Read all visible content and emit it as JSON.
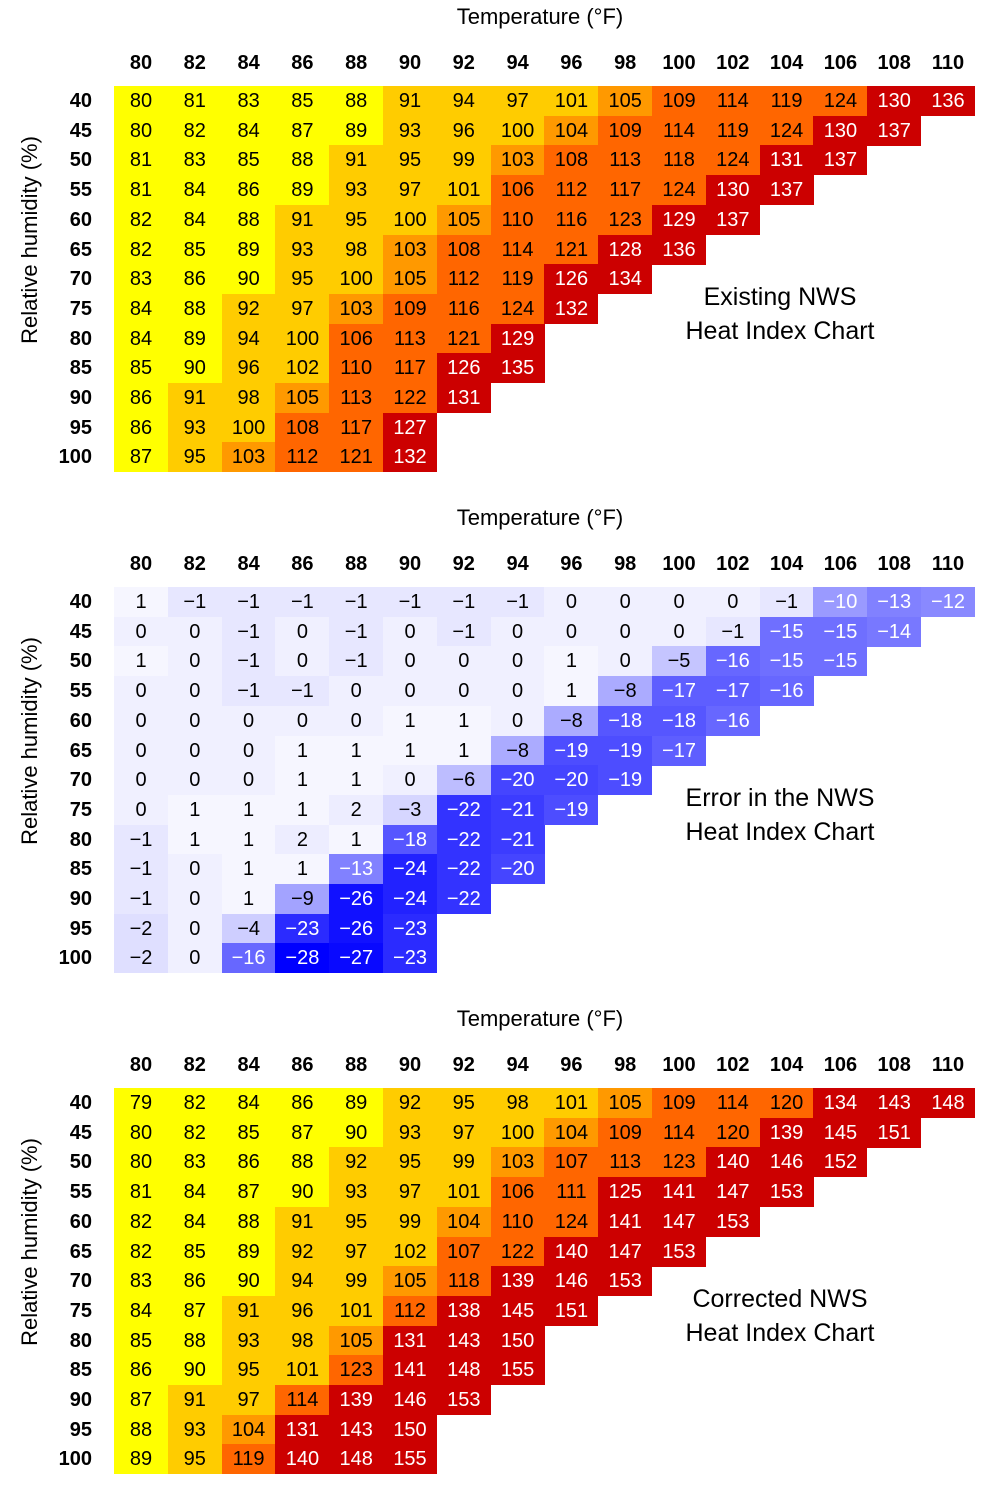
{
  "chart_data": [
    {
      "type": "heatmap",
      "title_lines": [
        "Existing NWS",
        "Heat Index Chart"
      ],
      "xlabel": "Temperature (°F)",
      "ylabel": "Relative humidity (%)",
      "x": [
        80,
        82,
        84,
        86,
        88,
        90,
        92,
        94,
        96,
        98,
        100,
        102,
        104,
        106,
        108,
        110
      ],
      "y": [
        40,
        45,
        50,
        55,
        60,
        65,
        70,
        75,
        80,
        85,
        90,
        95,
        100
      ],
      "colorscale": "heat",
      "values": [
        [
          80,
          81,
          83,
          85,
          88,
          91,
          94,
          97,
          101,
          105,
          109,
          114,
          119,
          124,
          130,
          136
        ],
        [
          80,
          82,
          84,
          87,
          89,
          93,
          96,
          100,
          104,
          109,
          114,
          119,
          124,
          130,
          137
        ],
        [
          81,
          83,
          85,
          88,
          91,
          95,
          99,
          103,
          108,
          113,
          118,
          124,
          131,
          137
        ],
        [
          81,
          84,
          86,
          89,
          93,
          97,
          101,
          106,
          112,
          117,
          124,
          130,
          137
        ],
        [
          82,
          84,
          88,
          91,
          95,
          100,
          105,
          110,
          116,
          123,
          129,
          137
        ],
        [
          82,
          85,
          89,
          93,
          98,
          103,
          108,
          114,
          121,
          128,
          136
        ],
        [
          83,
          86,
          90,
          95,
          100,
          105,
          112,
          119,
          126,
          134
        ],
        [
          84,
          88,
          92,
          97,
          103,
          109,
          116,
          124,
          132
        ],
        [
          84,
          89,
          94,
          100,
          106,
          113,
          121,
          129
        ],
        [
          85,
          90,
          96,
          102,
          110,
          117,
          126,
          135
        ],
        [
          86,
          91,
          98,
          105,
          113,
          122,
          131
        ],
        [
          86,
          93,
          100,
          108,
          117,
          127
        ],
        [
          87,
          95,
          103,
          112,
          121,
          132
        ]
      ]
    },
    {
      "type": "heatmap",
      "title_lines": [
        "Error in the NWS",
        "Heat Index Chart"
      ],
      "xlabel": "Temperature (°F)",
      "ylabel": "Relative humidity (%)",
      "x": [
        80,
        82,
        84,
        86,
        88,
        90,
        92,
        94,
        96,
        98,
        100,
        102,
        104,
        106,
        108,
        110
      ],
      "y": [
        40,
        45,
        50,
        55,
        60,
        65,
        70,
        75,
        80,
        85,
        90,
        95,
        100
      ],
      "colorscale": "blue",
      "values": [
        [
          1,
          -1,
          -1,
          -1,
          -1,
          -1,
          -1,
          -1,
          0,
          0,
          0,
          0,
          -1,
          -10,
          -13,
          -12
        ],
        [
          0,
          0,
          -1,
          0,
          -1,
          0,
          -1,
          0,
          0,
          0,
          0,
          -1,
          -15,
          -15,
          -14
        ],
        [
          1,
          0,
          -1,
          0,
          -1,
          0,
          0,
          0,
          1,
          0,
          -5,
          -16,
          -15,
          -15
        ],
        [
          0,
          0,
          -1,
          -1,
          0,
          0,
          0,
          0,
          1,
          -8,
          -17,
          -17,
          -16
        ],
        [
          0,
          0,
          0,
          0,
          0,
          1,
          1,
          0,
          -8,
          -18,
          -18,
          -16
        ],
        [
          0,
          0,
          0,
          1,
          1,
          1,
          1,
          -8,
          -19,
          -19,
          -17
        ],
        [
          0,
          0,
          0,
          1,
          1,
          0,
          -6,
          -20,
          -20,
          -19
        ],
        [
          0,
          1,
          1,
          1,
          2,
          -3,
          -22,
          -21,
          -19
        ],
        [
          -1,
          1,
          1,
          2,
          1,
          -18,
          -22,
          -21
        ],
        [
          -1,
          0,
          1,
          1,
          -13,
          -24,
          -22,
          -20
        ],
        [
          -1,
          0,
          1,
          -9,
          -26,
          -24,
          -22
        ],
        [
          -2,
          0,
          -4,
          -23,
          -26,
          -23
        ],
        [
          -2,
          0,
          -16,
          -28,
          -27,
          -23
        ]
      ]
    },
    {
      "type": "heatmap",
      "title_lines": [
        "Corrected NWS",
        "Heat Index Chart"
      ],
      "xlabel": "Temperature (°F)",
      "ylabel": "Relative humidity (%)",
      "x": [
        80,
        82,
        84,
        86,
        88,
        90,
        92,
        94,
        96,
        98,
        100,
        102,
        104,
        106,
        108,
        110
      ],
      "y": [
        40,
        45,
        50,
        55,
        60,
        65,
        70,
        75,
        80,
        85,
        90,
        95,
        100
      ],
      "colorscale": "heat",
      "values": [
        [
          79,
          82,
          84,
          86,
          89,
          92,
          95,
          98,
          101,
          105,
          109,
          114,
          120,
          134,
          143,
          148
        ],
        [
          80,
          82,
          85,
          87,
          90,
          93,
          97,
          100,
          104,
          109,
          114,
          120,
          139,
          145,
          151
        ],
        [
          80,
          83,
          86,
          88,
          92,
          95,
          99,
          103,
          107,
          113,
          123,
          140,
          146,
          152
        ],
        [
          81,
          84,
          87,
          90,
          93,
          97,
          101,
          106,
          111,
          125,
          141,
          147,
          153
        ],
        [
          82,
          84,
          88,
          91,
          95,
          99,
          104,
          110,
          124,
          141,
          147,
          153
        ],
        [
          82,
          85,
          89,
          92,
          97,
          102,
          107,
          122,
          140,
          147,
          153
        ],
        [
          83,
          86,
          90,
          94,
          99,
          105,
          118,
          139,
          146,
          153
        ],
        [
          84,
          87,
          91,
          96,
          101,
          112,
          138,
          145,
          151
        ],
        [
          85,
          88,
          93,
          98,
          105,
          131,
          143,
          150
        ],
        [
          86,
          90,
          95,
          101,
          123,
          141,
          148,
          155
        ],
        [
          87,
          91,
          97,
          114,
          139,
          146,
          153
        ],
        [
          88,
          93,
          104,
          131,
          143,
          150
        ],
        [
          89,
          95,
          119,
          140,
          148,
          155
        ]
      ]
    }
  ],
  "colors": {
    "yellow": "#ffff00",
    "light_orange": "#ffcc00",
    "orange": "#ff9900",
    "dark_orange": "#ff6600",
    "red": "#cc0000",
    "blue_max": "#0000ff"
  }
}
